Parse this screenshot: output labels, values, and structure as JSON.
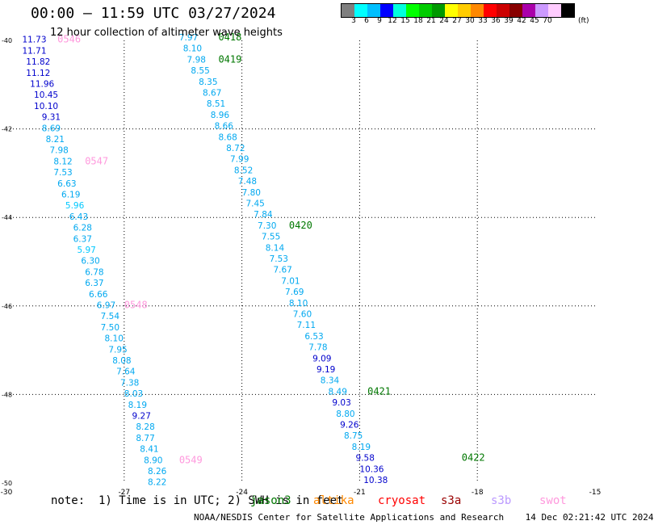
{
  "header": {
    "title": "00:00 – 11:59 UTC 03/27/2024",
    "subtitle": "12 hour collection of altimeter wave heights"
  },
  "colorbar": {
    "colors": [
      "#7f7f7f",
      "#00ffff",
      "#00bfff",
      "#0000ff",
      "#00ffdd",
      "#00ff00",
      "#00cc00",
      "#009900",
      "#ffff00",
      "#ffcc00",
      "#ff8800",
      "#ff0000",
      "#cc0000",
      "#880000",
      "#aa00aa",
      "#cc99ff",
      "#ffccff",
      "#000000"
    ],
    "labels": [
      "3",
      "6",
      "9",
      "12",
      "15",
      "18",
      "21",
      "24",
      "27",
      "30",
      "33",
      "36",
      "39",
      "42",
      "45",
      "70"
    ],
    "unit": "(ft)"
  },
  "footer": {
    "note": "note:  1) Time is in UTC; 2) SWH is in feet",
    "credit": "NOAA/NESDIS Center for Satellite Applications and Research    14 Dec 02:21:42 UTC 2024",
    "satellites": [
      {
        "name": "jason3",
        "color": "#007700"
      },
      {
        "name": "altika",
        "color": "#ff8800"
      },
      {
        "name": "cryosat",
        "color": "#ff0000"
      },
      {
        "name": "s3a",
        "color": "#990000"
      },
      {
        "name": "s3b",
        "color": "#bb99ff"
      },
      {
        "name": "swot",
        "color": "#ff99dd"
      }
    ]
  },
  "chart_data": {
    "type": "scatter",
    "title": "00:00 – 11:59 UTC 03/27/2024",
    "subtitle": "12 hour collection of altimeter wave heights",
    "xlim": [
      -30,
      -15
    ],
    "ylim": [
      -50,
      -40
    ],
    "x_ticks": [
      "-30",
      "-27",
      "-24",
      "-21",
      "-18",
      "-15"
    ],
    "y_ticks": [
      "-40",
      "-42",
      "-44",
      "-46",
      "-48",
      "-50"
    ],
    "grid": true,
    "tracks": [
      {
        "satellite": "swot",
        "color": "#ff99dd",
        "points": [
          {
            "lon": -29.6,
            "lat": -40.05,
            "v": "11.73"
          },
          {
            "lon": -29.6,
            "lat": -40.3,
            "v": "11.71"
          },
          {
            "lon": -29.5,
            "lat": -40.55,
            "v": "11.82"
          },
          {
            "lon": -29.5,
            "lat": -40.8,
            "v": "11.12"
          },
          {
            "lon": -29.4,
            "lat": -41.05,
            "v": "11.96"
          },
          {
            "lon": -29.3,
            "lat": -41.3,
            "v": "10.45"
          },
          {
            "lon": -29.3,
            "lat": -41.55,
            "v": "10.10"
          },
          {
            "lon": -29.1,
            "lat": -41.8,
            "v": "9.31"
          },
          {
            "lon": -29.1,
            "lat": -42.05,
            "v": "8.69"
          },
          {
            "lon": -29.0,
            "lat": -42.3,
            "v": "8.21"
          },
          {
            "lon": -28.9,
            "lat": -42.55,
            "v": "7.98"
          },
          {
            "lon": -28.8,
            "lat": -42.8,
            "v": "8.12"
          },
          {
            "lon": -28.8,
            "lat": -43.05,
            "v": "7.53"
          },
          {
            "lon": -28.7,
            "lat": -43.3,
            "v": "6.63"
          },
          {
            "lon": -28.6,
            "lat": -43.55,
            "v": "6.19"
          },
          {
            "lon": -28.5,
            "lat": -43.8,
            "v": "5.96"
          },
          {
            "lon": -28.4,
            "lat": -44.05,
            "v": "6.43"
          },
          {
            "lon": -28.3,
            "lat": -44.3,
            "v": "6.28"
          },
          {
            "lon": -28.3,
            "lat": -44.55,
            "v": "6.37"
          },
          {
            "lon": -28.2,
            "lat": -44.8,
            "v": "5.97"
          },
          {
            "lon": -28.1,
            "lat": -45.05,
            "v": "6.30"
          },
          {
            "lon": -28.0,
            "lat": -45.3,
            "v": "6.78"
          },
          {
            "lon": -28.0,
            "lat": -45.55,
            "v": "6.37"
          },
          {
            "lon": -27.9,
            "lat": -45.8,
            "v": "6.66"
          },
          {
            "lon": -27.7,
            "lat": -46.05,
            "v": "6.97"
          },
          {
            "lon": -27.6,
            "lat": -46.3,
            "v": "7.54"
          },
          {
            "lon": -27.6,
            "lat": -46.55,
            "v": "7.50"
          },
          {
            "lon": -27.5,
            "lat": -46.8,
            "v": "8.10"
          },
          {
            "lon": -27.4,
            "lat": -47.05,
            "v": "7.95"
          },
          {
            "lon": -27.3,
            "lat": -47.3,
            "v": "8.08"
          },
          {
            "lon": -27.2,
            "lat": -47.55,
            "v": "7.64"
          },
          {
            "lon": -27.1,
            "lat": -47.8,
            "v": "7.38"
          },
          {
            "lon": -27.0,
            "lat": -48.05,
            "v": "8.03"
          },
          {
            "lon": -26.9,
            "lat": -48.3,
            "v": "8.19"
          },
          {
            "lon": -26.8,
            "lat": -48.55,
            "v": "9.27"
          },
          {
            "lon": -26.7,
            "lat": -48.8,
            "v": "8.28"
          },
          {
            "lon": -26.7,
            "lat": -49.05,
            "v": "8.77"
          },
          {
            "lon": -26.6,
            "lat": -49.3,
            "v": "8.41"
          },
          {
            "lon": -26.5,
            "lat": -49.55,
            "v": "8.90"
          },
          {
            "lon": -26.4,
            "lat": -49.8,
            "v": "8.26"
          },
          {
            "lon": -26.4,
            "lat": -50.05,
            "v": "8.22"
          }
        ],
        "time_labels": [
          {
            "lon": -28.7,
            "lat": -40.05,
            "t": "0546"
          },
          {
            "lon": -28.0,
            "lat": -42.8,
            "t": "0547"
          },
          {
            "lon": -27.0,
            "lat": -46.05,
            "t": "0548"
          },
          {
            "lon": -25.6,
            "lat": -49.55,
            "t": "0549"
          }
        ]
      },
      {
        "satellite": "jason3",
        "color": "#007700",
        "points": [
          {
            "lon": -25.6,
            "lat": -40.0,
            "v": "7.97"
          },
          {
            "lon": -25.5,
            "lat": -40.25,
            "v": "8.10"
          },
          {
            "lon": -25.4,
            "lat": -40.5,
            "v": "7.98"
          },
          {
            "lon": -25.3,
            "lat": -40.75,
            "v": "8.55"
          },
          {
            "lon": -25.1,
            "lat": -41.0,
            "v": "8.35"
          },
          {
            "lon": -25.0,
            "lat": -41.25,
            "v": "8.67"
          },
          {
            "lon": -24.9,
            "lat": -41.5,
            "v": "8.51"
          },
          {
            "lon": -24.8,
            "lat": -41.75,
            "v": "8.96"
          },
          {
            "lon": -24.7,
            "lat": -42.0,
            "v": "8.66"
          },
          {
            "lon": -24.6,
            "lat": -42.25,
            "v": "8.68"
          },
          {
            "lon": -24.4,
            "lat": -42.5,
            "v": "8.72"
          },
          {
            "lon": -24.3,
            "lat": -42.75,
            "v": "7.99"
          },
          {
            "lon": -24.2,
            "lat": -43.0,
            "v": "8.52"
          },
          {
            "lon": -24.1,
            "lat": -43.25,
            "v": "7.48"
          },
          {
            "lon": -24.0,
            "lat": -43.5,
            "v": "7.80"
          },
          {
            "lon": -23.9,
            "lat": -43.75,
            "v": "7.45"
          },
          {
            "lon": -23.7,
            "lat": -44.0,
            "v": "7.84"
          },
          {
            "lon": -23.6,
            "lat": -44.25,
            "v": "7.30"
          },
          {
            "lon": -23.5,
            "lat": -44.5,
            "v": "7.55"
          },
          {
            "lon": -23.4,
            "lat": -44.75,
            "v": "8.14"
          },
          {
            "lon": -23.3,
            "lat": -45.0,
            "v": "7.53"
          },
          {
            "lon": -23.2,
            "lat": -45.25,
            "v": "7.67"
          },
          {
            "lon": -23.0,
            "lat": -45.5,
            "v": "7.01"
          },
          {
            "lon": -22.9,
            "lat": -45.75,
            "v": "7.69"
          },
          {
            "lon": -22.8,
            "lat": -46.0,
            "v": "8.10"
          },
          {
            "lon": -22.7,
            "lat": -46.25,
            "v": "7.60"
          },
          {
            "lon": -22.6,
            "lat": -46.5,
            "v": "7.11"
          },
          {
            "lon": -22.4,
            "lat": -46.75,
            "v": "6.53"
          },
          {
            "lon": -22.3,
            "lat": -47.0,
            "v": "7.78"
          },
          {
            "lon": -22.2,
            "lat": -47.25,
            "v": "9.09"
          },
          {
            "lon": -22.1,
            "lat": -47.5,
            "v": "9.19"
          },
          {
            "lon": -22.0,
            "lat": -47.75,
            "v": "8.34"
          },
          {
            "lon": -21.8,
            "lat": -48.0,
            "v": "8.49"
          },
          {
            "lon": -21.7,
            "lat": -48.25,
            "v": "9.03"
          },
          {
            "lon": -21.6,
            "lat": -48.5,
            "v": "8.80"
          },
          {
            "lon": -21.5,
            "lat": -48.75,
            "v": "9.26"
          },
          {
            "lon": -21.4,
            "lat": -49.0,
            "v": "8.75"
          },
          {
            "lon": -21.2,
            "lat": -49.25,
            "v": "8.19"
          },
          {
            "lon": -21.1,
            "lat": -49.5,
            "v": "9.58"
          },
          {
            "lon": -21.0,
            "lat": -49.75,
            "v": "10.36"
          },
          {
            "lon": -20.9,
            "lat": -50.0,
            "v": "10.38"
          }
        ],
        "time_labels": [
          {
            "lon": -24.6,
            "lat": -40.0,
            "t": "0418"
          },
          {
            "lon": -24.6,
            "lat": -40.5,
            "t": "0419"
          },
          {
            "lon": -22.8,
            "lat": -44.25,
            "t": "0420"
          },
          {
            "lon": -20.8,
            "lat": -48.0,
            "t": "0421"
          },
          {
            "lon": -18.4,
            "lat": -49.5,
            "t": "0422"
          }
        ]
      }
    ]
  }
}
